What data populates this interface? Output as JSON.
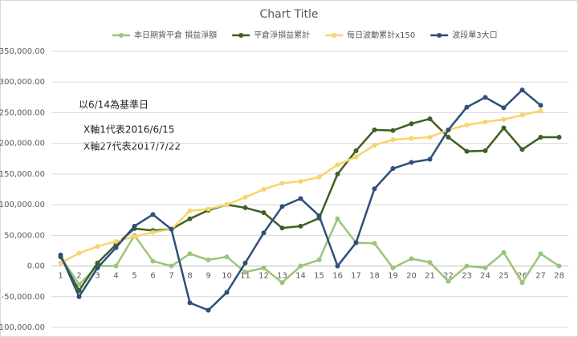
{
  "chart_data": {
    "type": "line",
    "title": "Chart Title",
    "categories": [
      "1",
      "2",
      "3",
      "4",
      "5",
      "6",
      "7",
      "8",
      "9",
      "10",
      "11",
      "12",
      "13",
      "14",
      "15",
      "16",
      "17",
      "18",
      "19",
      "20",
      "21",
      "22",
      "23",
      "24",
      "25",
      "26",
      "27",
      "28"
    ],
    "series": [
      {
        "name": "本日期貨平倉 損益淨額",
        "color": "#9bc57a",
        "values": [
          15000,
          -30000,
          0,
          0,
          50000,
          8000,
          0,
          20000,
          10000,
          15000,
          -10000,
          -3000,
          -27000,
          0,
          10000,
          77000,
          38000,
          37000,
          -3000,
          12000,
          6000,
          -25000,
          0,
          -3000,
          22000,
          -27000,
          20000,
          0
        ]
      },
      {
        "name": "平倉淨損益累計",
        "color": "#3f5f24",
        "values": [
          15000,
          -40000,
          5000,
          35000,
          61000,
          58000,
          60000,
          77000,
          91000,
          100000,
          95000,
          87000,
          62000,
          65000,
          78000,
          150000,
          188000,
          222000,
          221000,
          232000,
          240000,
          210000,
          187000,
          188000,
          225000,
          190000,
          210000,
          210000
        ]
      },
      {
        "name": "每日波動累計x150",
        "color": "#f6d56b",
        "values": [
          5000,
          21000,
          32000,
          40000,
          48000,
          55000,
          60000,
          90000,
          93000,
          100000,
          112000,
          125000,
          135000,
          138000,
          145000,
          165000,
          178000,
          197000,
          206000,
          208000,
          210000,
          222000,
          230000,
          235000,
          239000,
          246000,
          253000,
          null
        ]
      },
      {
        "name": "波段單3大口",
        "color": "#2f4f7a",
        "values": [
          18000,
          -50000,
          -3000,
          30000,
          65000,
          84000,
          60000,
          -60000,
          -72000,
          -43000,
          5000,
          54000,
          97000,
          110000,
          82000,
          0,
          38000,
          126000,
          159000,
          169000,
          174000,
          222000,
          259000,
          275000,
          258000,
          287000,
          262000,
          null
        ]
      }
    ],
    "ylim": [
      -100000,
      350000
    ],
    "yticks": [
      {
        "value": -100000,
        "label": "-100,000.00"
      },
      {
        "value": -50000,
        "label": "-50,000.00"
      },
      {
        "value": 0,
        "label": "0.00"
      },
      {
        "value": 50000,
        "label": "50,000.00"
      },
      {
        "value": 100000,
        "label": "100,000.00"
      },
      {
        "value": 150000,
        "label": "150,000.00"
      },
      {
        "value": 200000,
        "label": "200,000.00"
      },
      {
        "value": 250000,
        "label": "250,000.00"
      },
      {
        "value": 300000,
        "label": "300,000.00"
      },
      {
        "value": 350000,
        "label": "350,000.00"
      }
    ],
    "grid": true,
    "legend": "top",
    "annotations": [
      "以6/14為基準日",
      "X軸1代表2016/6/15",
      "X軸27代表2017/7/22"
    ]
  }
}
